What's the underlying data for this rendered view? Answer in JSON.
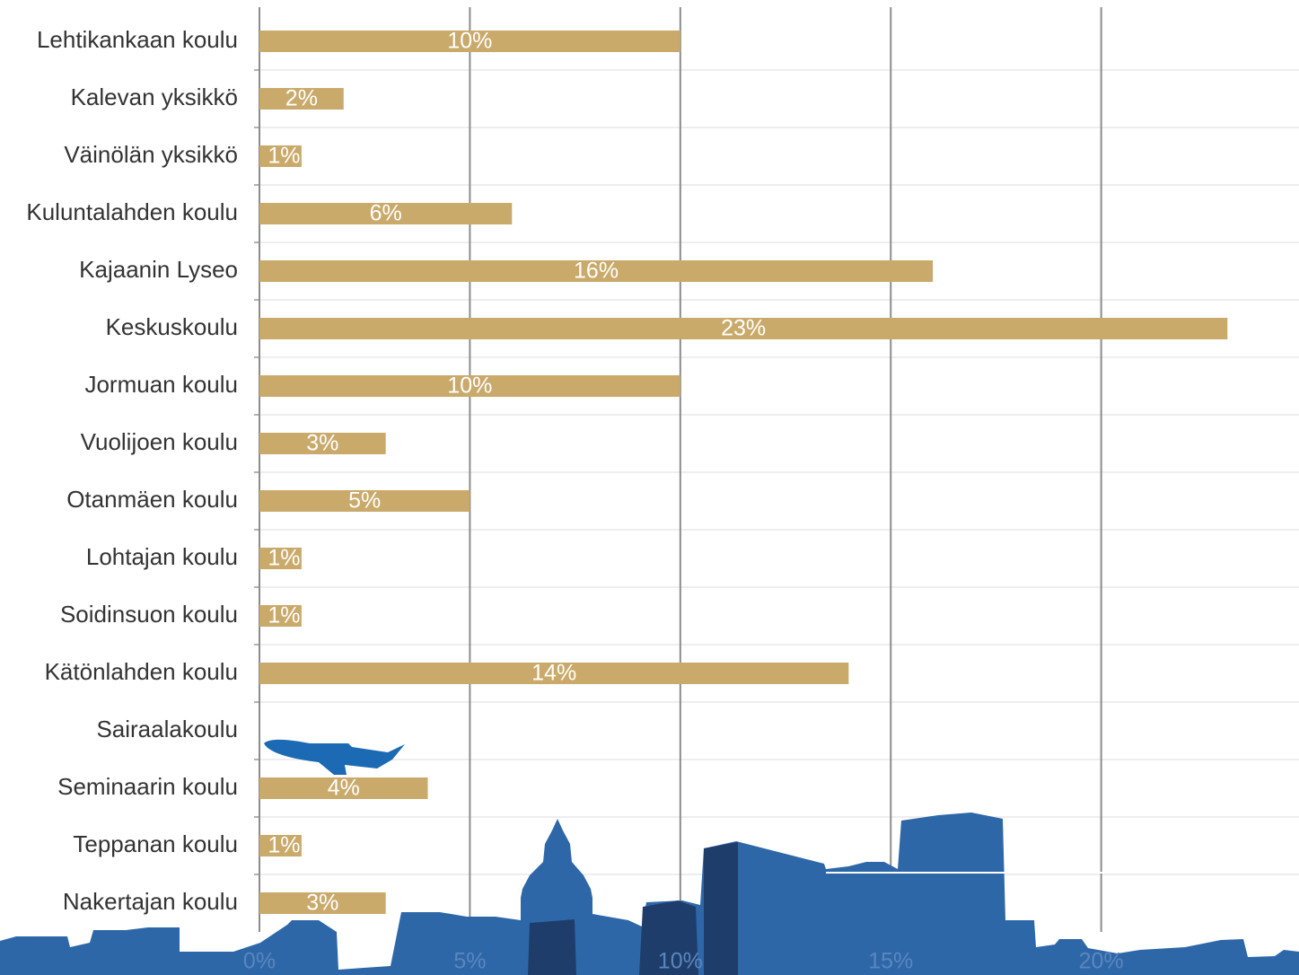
{
  "chart_data": {
    "type": "bar",
    "orientation": "horizontal",
    "categories": [
      "Lehtikankaan koulu",
      "Kalevan yksikkö",
      "Väinölän yksikkö",
      "Kuluntalahden koulu",
      "Kajaanin Lyseo",
      "Keskuskoulu",
      "Jormuan koulu",
      "Vuolijoen koulu",
      "Otanmäen koulu",
      "Lohtajan koulu",
      "Soidinsuon koulu",
      "Kätönlahden koulu",
      "Sairaalakoulu",
      "Seminaarin koulu",
      "Teppanan koulu",
      "Nakertajan koulu"
    ],
    "values": [
      10,
      2,
      1,
      6,
      16,
      23,
      10,
      3,
      5,
      1,
      1,
      14,
      null,
      4,
      1,
      3
    ],
    "value_labels": [
      "10%",
      "2%",
      "1%",
      "6%",
      "16%",
      "23%",
      "10%",
      "3%",
      "5%",
      "1%",
      "1%",
      "14%",
      null,
      "4%",
      "1%",
      "3%"
    ],
    "color": "#c9aa6b",
    "xlim": [
      0,
      24.7
    ],
    "xticks": [
      {
        "value": 0,
        "label": "0%"
      },
      {
        "value": 5,
        "label": "5%"
      },
      {
        "value": 10,
        "label": "10%"
      },
      {
        "value": 15,
        "label": "15%"
      },
      {
        "value": 20,
        "label": "20%"
      }
    ],
    "grid": true
  }
}
